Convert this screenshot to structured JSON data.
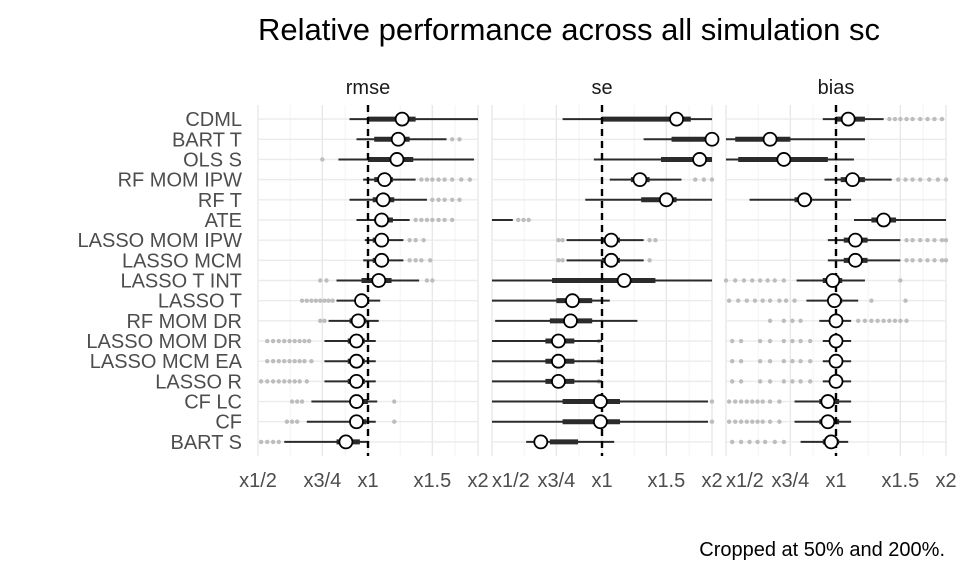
{
  "chart_data": {
    "type": "forest",
    "title": "Relative performance across all simulation sc",
    "caption": "Cropped at 50% and 200%.",
    "x_scale": "log2",
    "xlim": [
      0.5,
      2.0
    ],
    "x_ticks": [
      {
        "value": 0.5,
        "label": "x1/2"
      },
      {
        "value": 0.75,
        "label": "x3/4"
      },
      {
        "value": 1.0,
        "label": "x1"
      },
      {
        "value": 1.5,
        "label": "x1.5"
      },
      {
        "value": 2.0,
        "label": "x2"
      }
    ],
    "reference_value": 1.0,
    "methods": [
      "CDML",
      "BART T",
      "OLS S",
      "RF MOM IPW",
      "RF T",
      "ATE",
      "LASSO MOM IPW",
      "LASSO MCM",
      "LASSO T INT",
      "LASSO T",
      "RF MOM DR",
      "LASSO MOM DR",
      "LASSO MCM EA",
      "LASSO R",
      "CF LC",
      "CF",
      "BART S"
    ],
    "panels": [
      {
        "name": "rmse",
        "rows": [
          {
            "method": "CDML",
            "median": 1.24,
            "inner": [
              1.0,
              1.35
            ],
            "outer": [
              0.89,
              2.0
            ],
            "outliers": []
          },
          {
            "method": "BART T",
            "median": 1.21,
            "inner": [
              1.04,
              1.3
            ],
            "outer": [
              0.93,
              1.64
            ],
            "outliers": [
              1.7,
              1.78
            ]
          },
          {
            "method": "OLS S",
            "median": 1.2,
            "inner": [
              1.0,
              1.33
            ],
            "outer": [
              0.83,
              1.95
            ],
            "outliers": [
              0.75
            ]
          },
          {
            "method": "RF MOM IPW",
            "median": 1.11,
            "inner": [
              1.04,
              1.17
            ],
            "outer": [
              0.97,
              1.35
            ],
            "outliers": [
              1.4,
              1.45,
              1.5,
              1.56,
              1.62,
              1.7,
              1.8,
              1.9
            ]
          },
          {
            "method": "RF T",
            "median": 1.1,
            "inner": [
              1.03,
              1.18
            ],
            "outer": [
              0.89,
              1.45
            ],
            "outliers": [
              1.5,
              1.56,
              1.62,
              1.7,
              1.78
            ]
          },
          {
            "method": "ATE",
            "median": 1.09,
            "inner": [
              1.04,
              1.17
            ],
            "outer": [
              0.93,
              1.3
            ],
            "outliers": [
              1.35,
              1.4,
              1.45,
              1.5,
              1.56,
              1.62,
              1.7
            ]
          },
          {
            "method": "LASSO MOM IPW",
            "median": 1.09,
            "inner": [
              1.03,
              1.14
            ],
            "outer": [
              0.98,
              1.25
            ],
            "outliers": [
              1.3,
              1.35,
              1.42
            ]
          },
          {
            "method": "LASSO MCM",
            "median": 1.09,
            "inner": [
              1.03,
              1.14
            ],
            "outer": [
              0.97,
              1.25
            ],
            "outliers": [
              1.3,
              1.35,
              1.4,
              1.48
            ]
          },
          {
            "method": "LASSO T INT",
            "median": 1.07,
            "inner": [
              0.96,
              1.16
            ],
            "outer": [
              0.82,
              1.38
            ],
            "outliers": [
              0.74,
              0.77,
              1.45,
              1.5
            ]
          },
          {
            "method": "LASSO T",
            "median": 0.96,
            "inner": [
              0.93,
              1.0
            ],
            "outer": [
              0.82,
              1.08
            ],
            "outliers": [
              0.66,
              0.68,
              0.7,
              0.72,
              0.74,
              0.76,
              0.78,
              0.8
            ]
          },
          {
            "method": "RF MOM DR",
            "median": 0.94,
            "inner": [
              0.89,
              0.99
            ],
            "outer": [
              0.78,
              1.07
            ],
            "outliers": [
              0.74,
              0.76
            ]
          },
          {
            "method": "LASSO MOM DR",
            "median": 0.93,
            "inner": [
              0.88,
              0.98
            ],
            "outer": [
              0.76,
              1.05
            ],
            "outliers": [
              0.53,
              0.55,
              0.57,
              0.59,
              0.61,
              0.63,
              0.65,
              0.67,
              0.69
            ]
          },
          {
            "method": "LASSO MCM EA",
            "median": 0.93,
            "inner": [
              0.88,
              0.98
            ],
            "outer": [
              0.76,
              1.05
            ],
            "outliers": [
              0.53,
              0.55,
              0.57,
              0.59,
              0.61,
              0.63,
              0.65,
              0.67,
              0.7
            ]
          },
          {
            "method": "LASSO R",
            "median": 0.93,
            "inner": [
              0.88,
              0.98
            ],
            "outer": [
              0.76,
              1.05
            ],
            "outliers": [
              0.51,
              0.53,
              0.55,
              0.57,
              0.59,
              0.61,
              0.63,
              0.65,
              0.68
            ]
          },
          {
            "method": "CF LC",
            "median": 0.93,
            "inner": [
              0.89,
              1.0
            ],
            "outer": [
              0.7,
              1.06
            ],
            "outliers": [
              0.62,
              0.64,
              0.66,
              1.18
            ]
          },
          {
            "method": "CF",
            "median": 0.93,
            "inner": [
              0.89,
              0.99
            ],
            "outer": [
              0.68,
              1.05
            ],
            "outliers": [
              0.6,
              0.62,
              0.64,
              1.18
            ]
          },
          {
            "method": "BART S",
            "median": 0.87,
            "inner": [
              0.82,
              0.95
            ],
            "outer": [
              0.59,
              1.0
            ],
            "outliers": [
              0.51,
              0.53,
              0.55,
              0.57
            ]
          }
        ]
      },
      {
        "name": "se",
        "rows": [
          {
            "method": "CDML",
            "median": 1.6,
            "inner": [
              1.0,
              1.75
            ],
            "outer": [
              0.78,
              2.0
            ],
            "outliers": []
          },
          {
            "method": "BART T",
            "median": 2.0,
            "inner": [
              1.55,
              2.0
            ],
            "outer": [
              1.3,
              2.0
            ],
            "outliers": []
          },
          {
            "method": "OLS S",
            "median": 1.85,
            "inner": [
              1.45,
              2.0
            ],
            "outer": [
              0.95,
              2.0
            ],
            "outliers": []
          },
          {
            "method": "RF MOM IPW",
            "median": 1.27,
            "inner": [
              1.2,
              1.35
            ],
            "outer": [
              1.05,
              1.65
            ],
            "outliers": [
              1.8,
              1.9,
              2.0
            ]
          },
          {
            "method": "RF T",
            "median": 1.5,
            "inner": [
              1.28,
              1.6
            ],
            "outer": [
              0.9,
              2.0
            ],
            "outliers": []
          },
          {
            "method": "ATE",
            "median": null,
            "inner": null,
            "outer": [
              0.5,
              0.57
            ],
            "outliers": [
              0.59,
              0.61,
              0.63
            ]
          },
          {
            "method": "LASSO MOM IPW",
            "median": 1.06,
            "inner": [
              1.0,
              1.12
            ],
            "outer": [
              0.8,
              1.3
            ],
            "outliers": [
              0.76,
              0.78,
              1.35,
              1.4
            ]
          },
          {
            "method": "LASSO MCM",
            "median": 1.06,
            "inner": [
              1.0,
              1.12
            ],
            "outer": [
              0.8,
              1.3
            ],
            "outliers": [
              0.76,
              0.78,
              1.35
            ]
          },
          {
            "method": "LASSO T INT",
            "median": 1.15,
            "inner": [
              0.73,
              1.4
            ],
            "outer": [
              0.5,
              2.0
            ],
            "outliers": []
          },
          {
            "method": "LASSO T",
            "median": 0.83,
            "inner": [
              0.75,
              0.94
            ],
            "outer": [
              0.5,
              1.05
            ],
            "outliers": []
          },
          {
            "method": "RF MOM DR",
            "median": 0.82,
            "inner": [
              0.72,
              0.94
            ],
            "outer": [
              0.51,
              1.25
            ],
            "outliers": []
          },
          {
            "method": "LASSO MOM DR",
            "median": 0.76,
            "inner": [
              0.7,
              0.84
            ],
            "outer": [
              0.5,
              1.0
            ],
            "outliers": [
              0.98
            ]
          },
          {
            "method": "LASSO MCM EA",
            "median": 0.76,
            "inner": [
              0.7,
              0.84
            ],
            "outer": [
              0.5,
              1.0
            ],
            "outliers": [
              0.98
            ]
          },
          {
            "method": "LASSO R",
            "median": 0.76,
            "inner": [
              0.7,
              0.84
            ],
            "outer": [
              0.5,
              1.0
            ],
            "outliers": [
              0.98
            ]
          },
          {
            "method": "CF LC",
            "median": 0.99,
            "inner": [
              0.78,
              1.12
            ],
            "outer": [
              0.5,
              1.95
            ],
            "outliers": [
              2.0
            ]
          },
          {
            "method": "CF",
            "median": 0.99,
            "inner": [
              0.78,
              1.12
            ],
            "outer": [
              0.5,
              1.95
            ],
            "outliers": [
              2.0
            ]
          },
          {
            "method": "BART S",
            "median": 0.68,
            "inner": [
              0.72,
              0.86
            ],
            "outer": [
              0.62,
              1.08
            ],
            "outliers": []
          }
        ]
      },
      {
        "name": "bias",
        "rows": [
          {
            "method": "CDML",
            "median": 1.08,
            "inner": [
              1.0,
              1.2
            ],
            "outer": [
              0.92,
              1.35
            ],
            "outliers": [
              1.4,
              1.45,
              1.5,
              1.56,
              1.62,
              1.7,
              1.78,
              1.86,
              1.95
            ]
          },
          {
            "method": "BART T",
            "median": 0.66,
            "inner": [
              0.53,
              0.75
            ],
            "outer": [
              0.5,
              1.2
            ],
            "outliers": []
          },
          {
            "method": "OLS S",
            "median": 0.72,
            "inner": [
              0.54,
              0.95
            ],
            "outer": [
              0.5,
              1.12
            ],
            "outliers": []
          },
          {
            "method": "RF MOM IPW",
            "median": 1.11,
            "inner": [
              1.03,
              1.2
            ],
            "outer": [
              0.93,
              1.42
            ],
            "outliers": [
              1.48,
              1.55,
              1.62,
              1.7,
              1.8,
              1.9,
              2.0
            ]
          },
          {
            "method": "RF T",
            "median": 0.82,
            "inner": [
              0.77,
              0.86
            ],
            "outer": [
              0.58,
              1.1
            ],
            "outliers": []
          },
          {
            "method": "ATE",
            "median": 1.35,
            "inner": [
              1.25,
              1.46
            ],
            "outer": [
              1.12,
              2.0
            ],
            "outliers": []
          },
          {
            "method": "LASSO MOM IPW",
            "median": 1.13,
            "inner": [
              1.05,
              1.22
            ],
            "outer": [
              0.95,
              1.5
            ],
            "outliers": [
              1.56,
              1.62,
              1.7,
              1.78,
              1.86,
              1.95,
              2.0
            ]
          },
          {
            "method": "LASSO MCM",
            "median": 1.13,
            "inner": [
              1.05,
              1.22
            ],
            "outer": [
              0.95,
              1.5
            ],
            "outliers": [
              1.56,
              1.62,
              1.7,
              1.78,
              1.86,
              1.95,
              2.0
            ]
          },
          {
            "method": "LASSO T INT",
            "median": 0.98,
            "inner": [
              0.92,
              1.04
            ],
            "outer": [
              0.78,
              1.2
            ],
            "outliers": [
              0.5,
              0.53,
              0.56,
              0.59,
              0.62,
              0.65,
              0.68,
              0.72,
              1.5
            ]
          },
          {
            "method": "LASSO T",
            "median": 0.99,
            "inner": [
              0.95,
              1.04
            ],
            "outer": [
              0.83,
              1.15
            ],
            "outliers": [
              0.51,
              0.54,
              0.57,
              0.6,
              0.63,
              0.66,
              0.7,
              0.73,
              0.77,
              1.25,
              1.55
            ]
          },
          {
            "method": "RF MOM DR",
            "median": 1.0,
            "inner": [
              0.97,
              1.04
            ],
            "outer": [
              0.9,
              1.1
            ],
            "outliers": [
              0.66,
              0.72,
              0.76,
              0.8,
              1.15,
              1.2,
              1.25,
              1.3,
              1.35,
              1.4,
              1.45,
              1.5,
              1.56
            ]
          },
          {
            "method": "LASSO MOM DR",
            "median": 1.0,
            "inner": [
              0.97,
              1.03
            ],
            "outer": [
              0.92,
              1.1
            ],
            "outliers": [
              0.52,
              0.55,
              0.62,
              0.66,
              0.72,
              0.76,
              0.8,
              0.85
            ]
          },
          {
            "method": "LASSO MCM EA",
            "median": 1.0,
            "inner": [
              0.97,
              1.03
            ],
            "outer": [
              0.92,
              1.1
            ],
            "outliers": [
              0.52,
              0.55,
              0.62,
              0.66,
              0.72,
              0.76,
              0.8,
              0.85
            ]
          },
          {
            "method": "LASSO R",
            "median": 1.0,
            "inner": [
              0.97,
              1.03
            ],
            "outer": [
              0.92,
              1.1
            ],
            "outliers": [
              0.52,
              0.55,
              0.62,
              0.66,
              0.72,
              0.76,
              0.8,
              0.85
            ]
          },
          {
            "method": "CF LC",
            "median": 0.95,
            "inner": [
              0.9,
              1.02
            ],
            "outer": [
              0.77,
              1.1
            ],
            "outliers": [
              0.51,
              0.53,
              0.55,
              0.57,
              0.59,
              0.61,
              0.63,
              0.66,
              0.7
            ]
          },
          {
            "method": "CF",
            "median": 0.95,
            "inner": [
              0.9,
              1.02
            ],
            "outer": [
              0.77,
              1.1
            ],
            "outliers": [
              0.51,
              0.53,
              0.55,
              0.57,
              0.59,
              0.61,
              0.63,
              0.66,
              0.7
            ]
          },
          {
            "method": "BART S",
            "median": 0.97,
            "inner": [
              0.92,
              1.02
            ],
            "outer": [
              0.8,
              1.08
            ],
            "outliers": [
              0.52,
              0.55,
              0.58,
              0.61,
              0.64,
              0.68,
              0.72
            ]
          }
        ]
      }
    ]
  }
}
